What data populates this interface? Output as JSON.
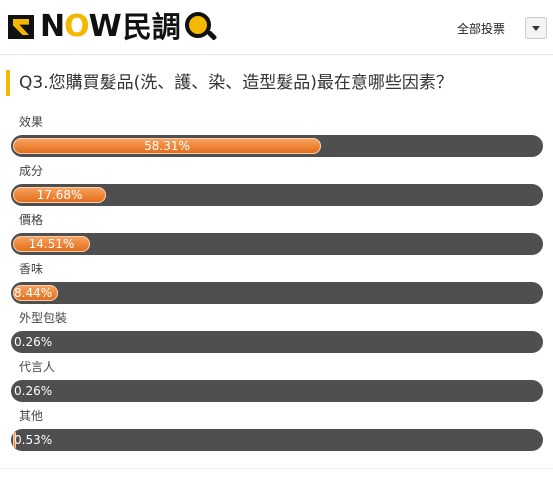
{
  "header": {
    "logo_text_now": "NOW",
    "logo_text_poll": "民調",
    "all_vote_label": "全部投票",
    "dropdown_icon": "chevron-down-icon"
  },
  "question": {
    "title": "Q3.您購買髮品(洗、護、染、造型髮品)最在意哪些因素？"
  },
  "colors": {
    "accent": "#f5b800",
    "bar_track": "#4f4f4f",
    "bar_fill": "#f08a3c"
  },
  "options": [
    {
      "label": "效果",
      "percent_text": "58.31%",
      "value": 58.31
    },
    {
      "label": "成分",
      "percent_text": "17.68%",
      "value": 17.68
    },
    {
      "label": "價格",
      "percent_text": "14.51%",
      "value": 14.51
    },
    {
      "label": "香味",
      "percent_text": "8.44%",
      "value": 8.44
    },
    {
      "label": "外型包裝",
      "percent_text": "0.26%",
      "value": 0.26
    },
    {
      "label": "代言人",
      "percent_text": "0.26%",
      "value": 0.26
    },
    {
      "label": "其他",
      "percent_text": "0.53%",
      "value": 0.53
    }
  ]
}
